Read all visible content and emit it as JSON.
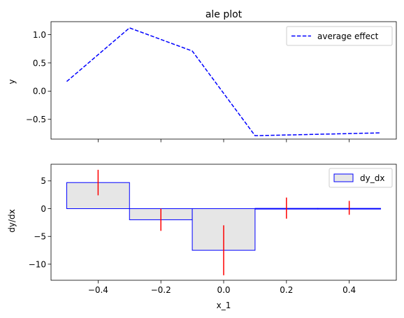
{
  "chart_data": [
    {
      "type": "line",
      "title": "ale plot",
      "xlabel": "",
      "ylabel": "y",
      "xlim": [
        -0.55,
        0.55
      ],
      "ylim": [
        -0.85,
        1.23
      ],
      "xticks": [
        -0.4,
        -0.2,
        0.0,
        0.2,
        0.4
      ],
      "yticks": [
        -0.5,
        0.0,
        0.5,
        1.0
      ],
      "ytick_labels": [
        "−0.5",
        "0.0",
        "0.5",
        "1.0"
      ],
      "grid": false,
      "legend": "upper right",
      "series": [
        {
          "name": "average effect",
          "color": "#0000ff",
          "style": "dashed",
          "x": [
            -0.5,
            -0.3,
            -0.1,
            0.1,
            0.5
          ],
          "y": [
            0.17,
            1.12,
            0.71,
            -0.79,
            -0.74
          ]
        }
      ]
    },
    {
      "type": "bar",
      "title": "",
      "xlabel": "x_1",
      "ylabel": "dy/dx",
      "xlim": [
        -0.55,
        0.55
      ],
      "ylim": [
        -12.9,
        8.0
      ],
      "xticks": [
        -0.4,
        -0.2,
        0.0,
        0.2,
        0.4
      ],
      "xtick_labels": [
        "−0.4",
        "−0.2",
        "0.0",
        "0.2",
        "0.4"
      ],
      "yticks": [
        -10,
        -5,
        0,
        5
      ],
      "ytick_labels": [
        "−10",
        "−5",
        "0",
        "5"
      ],
      "grid": false,
      "legend": "upper right",
      "bar_fill": "#e6e6e6",
      "bar_edge": "#0000ff",
      "error_color": "#ff0000",
      "series": [
        {
          "name": "dy_dx",
          "bins": [
            [
              -0.5,
              -0.3
            ],
            [
              -0.3,
              -0.1
            ],
            [
              -0.1,
              0.1
            ],
            [
              0.1,
              0.3
            ],
            [
              0.3,
              0.5
            ]
          ],
          "values": [
            4.7,
            -2.0,
            -7.5,
            0.05,
            0.05
          ],
          "error_x": [
            -0.4,
            -0.2,
            0.0,
            0.2,
            0.4
          ],
          "error_low": [
            2.4,
            -4.0,
            -12.0,
            -1.8,
            -1.1
          ],
          "error_high": [
            7.0,
            0.0,
            -3.0,
            2.0,
            1.4
          ]
        }
      ]
    }
  ]
}
